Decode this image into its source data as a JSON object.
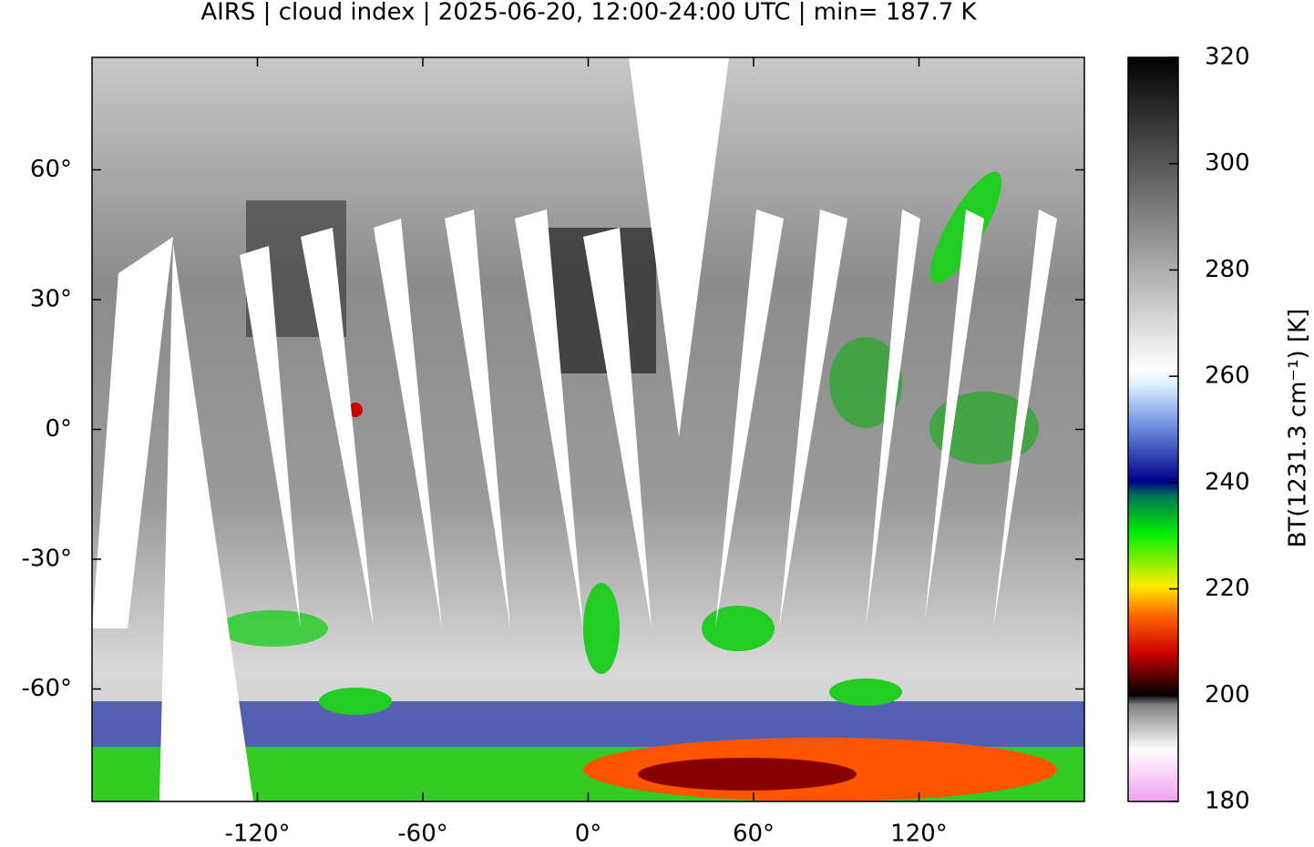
{
  "chart_data": {
    "type": "map",
    "title": "AIRS | cloud index | 2025-06-20, 12:00-24:00 UTC | min= 187.7 K",
    "xlim": [
      -180,
      180
    ],
    "ylim": [
      -86,
      86
    ],
    "xticks": [
      {
        "value": -120,
        "label": "-120°"
      },
      {
        "value": -60,
        "label": "-60°"
      },
      {
        "value": 0,
        "label": "0°"
      },
      {
        "value": 60,
        "label": "60°"
      },
      {
        "value": 120,
        "label": "120°"
      }
    ],
    "yticks": [
      {
        "value": -60,
        "label": "-60°"
      },
      {
        "value": -30,
        "label": "-30°"
      },
      {
        "value": 0,
        "label": "0°"
      },
      {
        "value": 30,
        "label": "30°"
      },
      {
        "value": 60,
        "label": "60°"
      }
    ],
    "colorbar": {
      "label": "BT(1231.3 cm⁻¹) [K]",
      "lim": [
        180,
        320
      ],
      "ticks": [
        180,
        200,
        220,
        240,
        260,
        280,
        300,
        320
      ]
    }
  }
}
